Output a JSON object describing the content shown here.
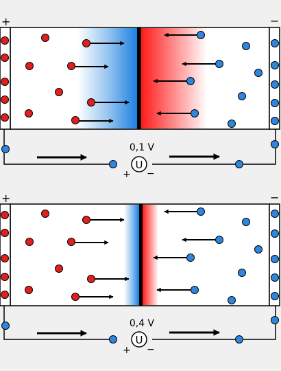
{
  "panels": [
    {
      "id": "top",
      "voltage_label": "0,1 V",
      "meter_symbol": "U",
      "plus_sign": "+",
      "minus_sign": "−",
      "depletion": "wide"
    },
    {
      "id": "bottom",
      "voltage_label": "0,4 V",
      "meter_symbol": "U",
      "plus_sign": "+",
      "minus_sign": "−",
      "depletion": "narrow"
    }
  ],
  "colors": {
    "hole": "#e02020",
    "electron": "#2f86de",
    "p_gradient": "#1a7fe0",
    "n_gradient": "#ff1a1a",
    "junction": "#000000",
    "background": "#f0f0f0"
  }
}
